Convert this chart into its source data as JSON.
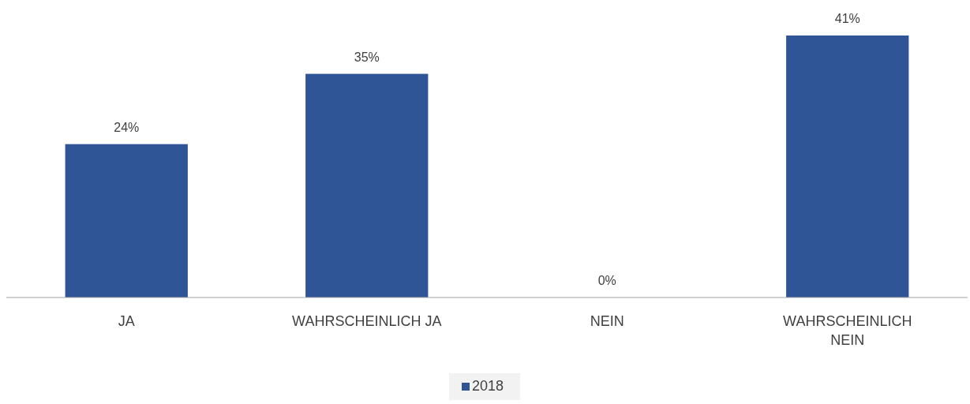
{
  "chart_data": {
    "type": "bar",
    "categories": [
      "JA",
      "WAHRSCHEINLICH JA",
      "NEIN",
      "WAHRSCHEINLICH NEIN"
    ],
    "series": [
      {
        "name": "2018",
        "color": "#2f5597",
        "values": [
          24,
          35,
          0,
          41
        ],
        "value_labels": [
          "24%",
          "35%",
          "0%",
          "41%"
        ]
      }
    ],
    "legend": "bottom",
    "grid": false
  }
}
